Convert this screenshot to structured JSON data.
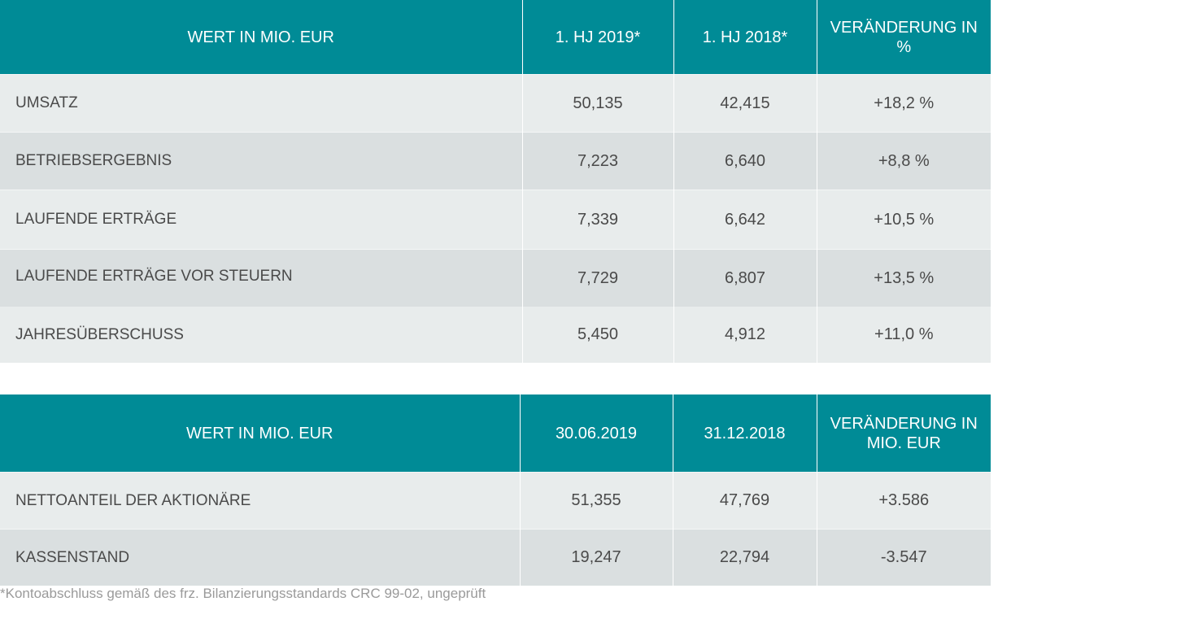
{
  "table1": {
    "headers": [
      "WERT IN MIO. EUR",
      "1. HJ 2019*",
      "1. HJ 2018*",
      "VERÄNDERUNG IN %"
    ],
    "rows": [
      [
        "UMSATZ",
        "50,135",
        "42,415",
        "+18,2 %"
      ],
      [
        "BETRIEBSERGEBNIS",
        "7,223",
        "6,640",
        "+8,8 %"
      ],
      [
        "LAUFENDE ERTRÄGE",
        "7,339",
        "6,642",
        "+10,5 %"
      ],
      [
        "LAUFENDE ERTRÄGE VOR STEUERN",
        "7,729",
        "6,807",
        "+13,5 %"
      ],
      [
        "JAHRESÜBERSCHUSS",
        "5,450",
        "4,912",
        "+11,0 %"
      ]
    ]
  },
  "table2": {
    "headers": [
      "WERT IN MIO. EUR",
      "30.06.2019",
      "31.12.2018",
      "VERÄNDERUNG IN MIO. EUR"
    ],
    "rows": [
      [
        "NETTOANTEIL DER AKTIONÄRE",
        "51,355",
        "47,769",
        "+3.586"
      ],
      [
        "KASSENSTAND",
        "19,247",
        "22,794",
        "-3.547"
      ]
    ]
  },
  "footnote": "*Kontoabschluss gemäß des frz. Bilanzierungsstandards CRC 99-02, ungeprüft",
  "colors": {
    "header_bg": "#008b96",
    "header_text": "#ffffff",
    "row_light": "#e8ecec",
    "row_dark": "#dadfe0",
    "body_text": "#4a4a4a",
    "footnote_text": "#9a9a9a"
  }
}
